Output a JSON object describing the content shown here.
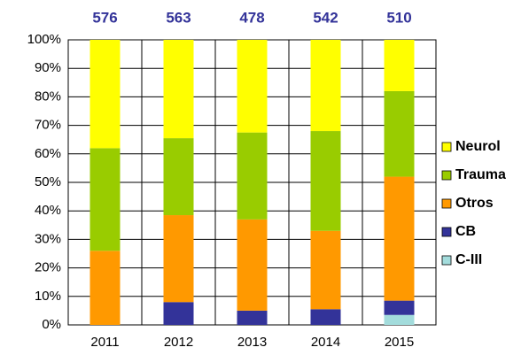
{
  "chart_data": {
    "type": "stacked_bar_100",
    "categories": [
      "2011",
      "2012",
      "2013",
      "2014",
      "2015"
    ],
    "totals": [
      576,
      563,
      478,
      542,
      510
    ],
    "series": [
      {
        "name": "C-III",
        "color": "#a3dcdc",
        "values": [
          0,
          0,
          0,
          0,
          3.5
        ]
      },
      {
        "name": "CB",
        "color": "#333399",
        "values": [
          0,
          8,
          5,
          5.5,
          5
        ]
      },
      {
        "name": "Otros",
        "color": "#ff9900",
        "values": [
          26,
          30.5,
          32,
          27.5,
          43.5
        ]
      },
      {
        "name": "Trauma",
        "color": "#99cc00",
        "values": [
          36,
          27,
          30.5,
          35,
          30
        ]
      },
      {
        "name": "Neurol",
        "color": "#ffff00",
        "values": [
          38,
          34.5,
          32.5,
          32,
          18
        ]
      }
    ],
    "ylim": [
      0,
      100
    ],
    "yticks": [
      {
        "value": 0,
        "label": "0%"
      },
      {
        "value": 10,
        "label": "10%"
      },
      {
        "value": 20,
        "label": "20%"
      },
      {
        "value": 30,
        "label": "30%"
      },
      {
        "value": 40,
        "label": "40%"
      },
      {
        "value": 50,
        "label": "50%"
      },
      {
        "value": 60,
        "label": "60%"
      },
      {
        "value": 70,
        "label": "70%"
      },
      {
        "value": 80,
        "label": "80%"
      },
      {
        "value": 90,
        "label": "90%"
      },
      {
        "value": 100,
        "label": "100%"
      }
    ],
    "grid": true,
    "legend": "right"
  }
}
